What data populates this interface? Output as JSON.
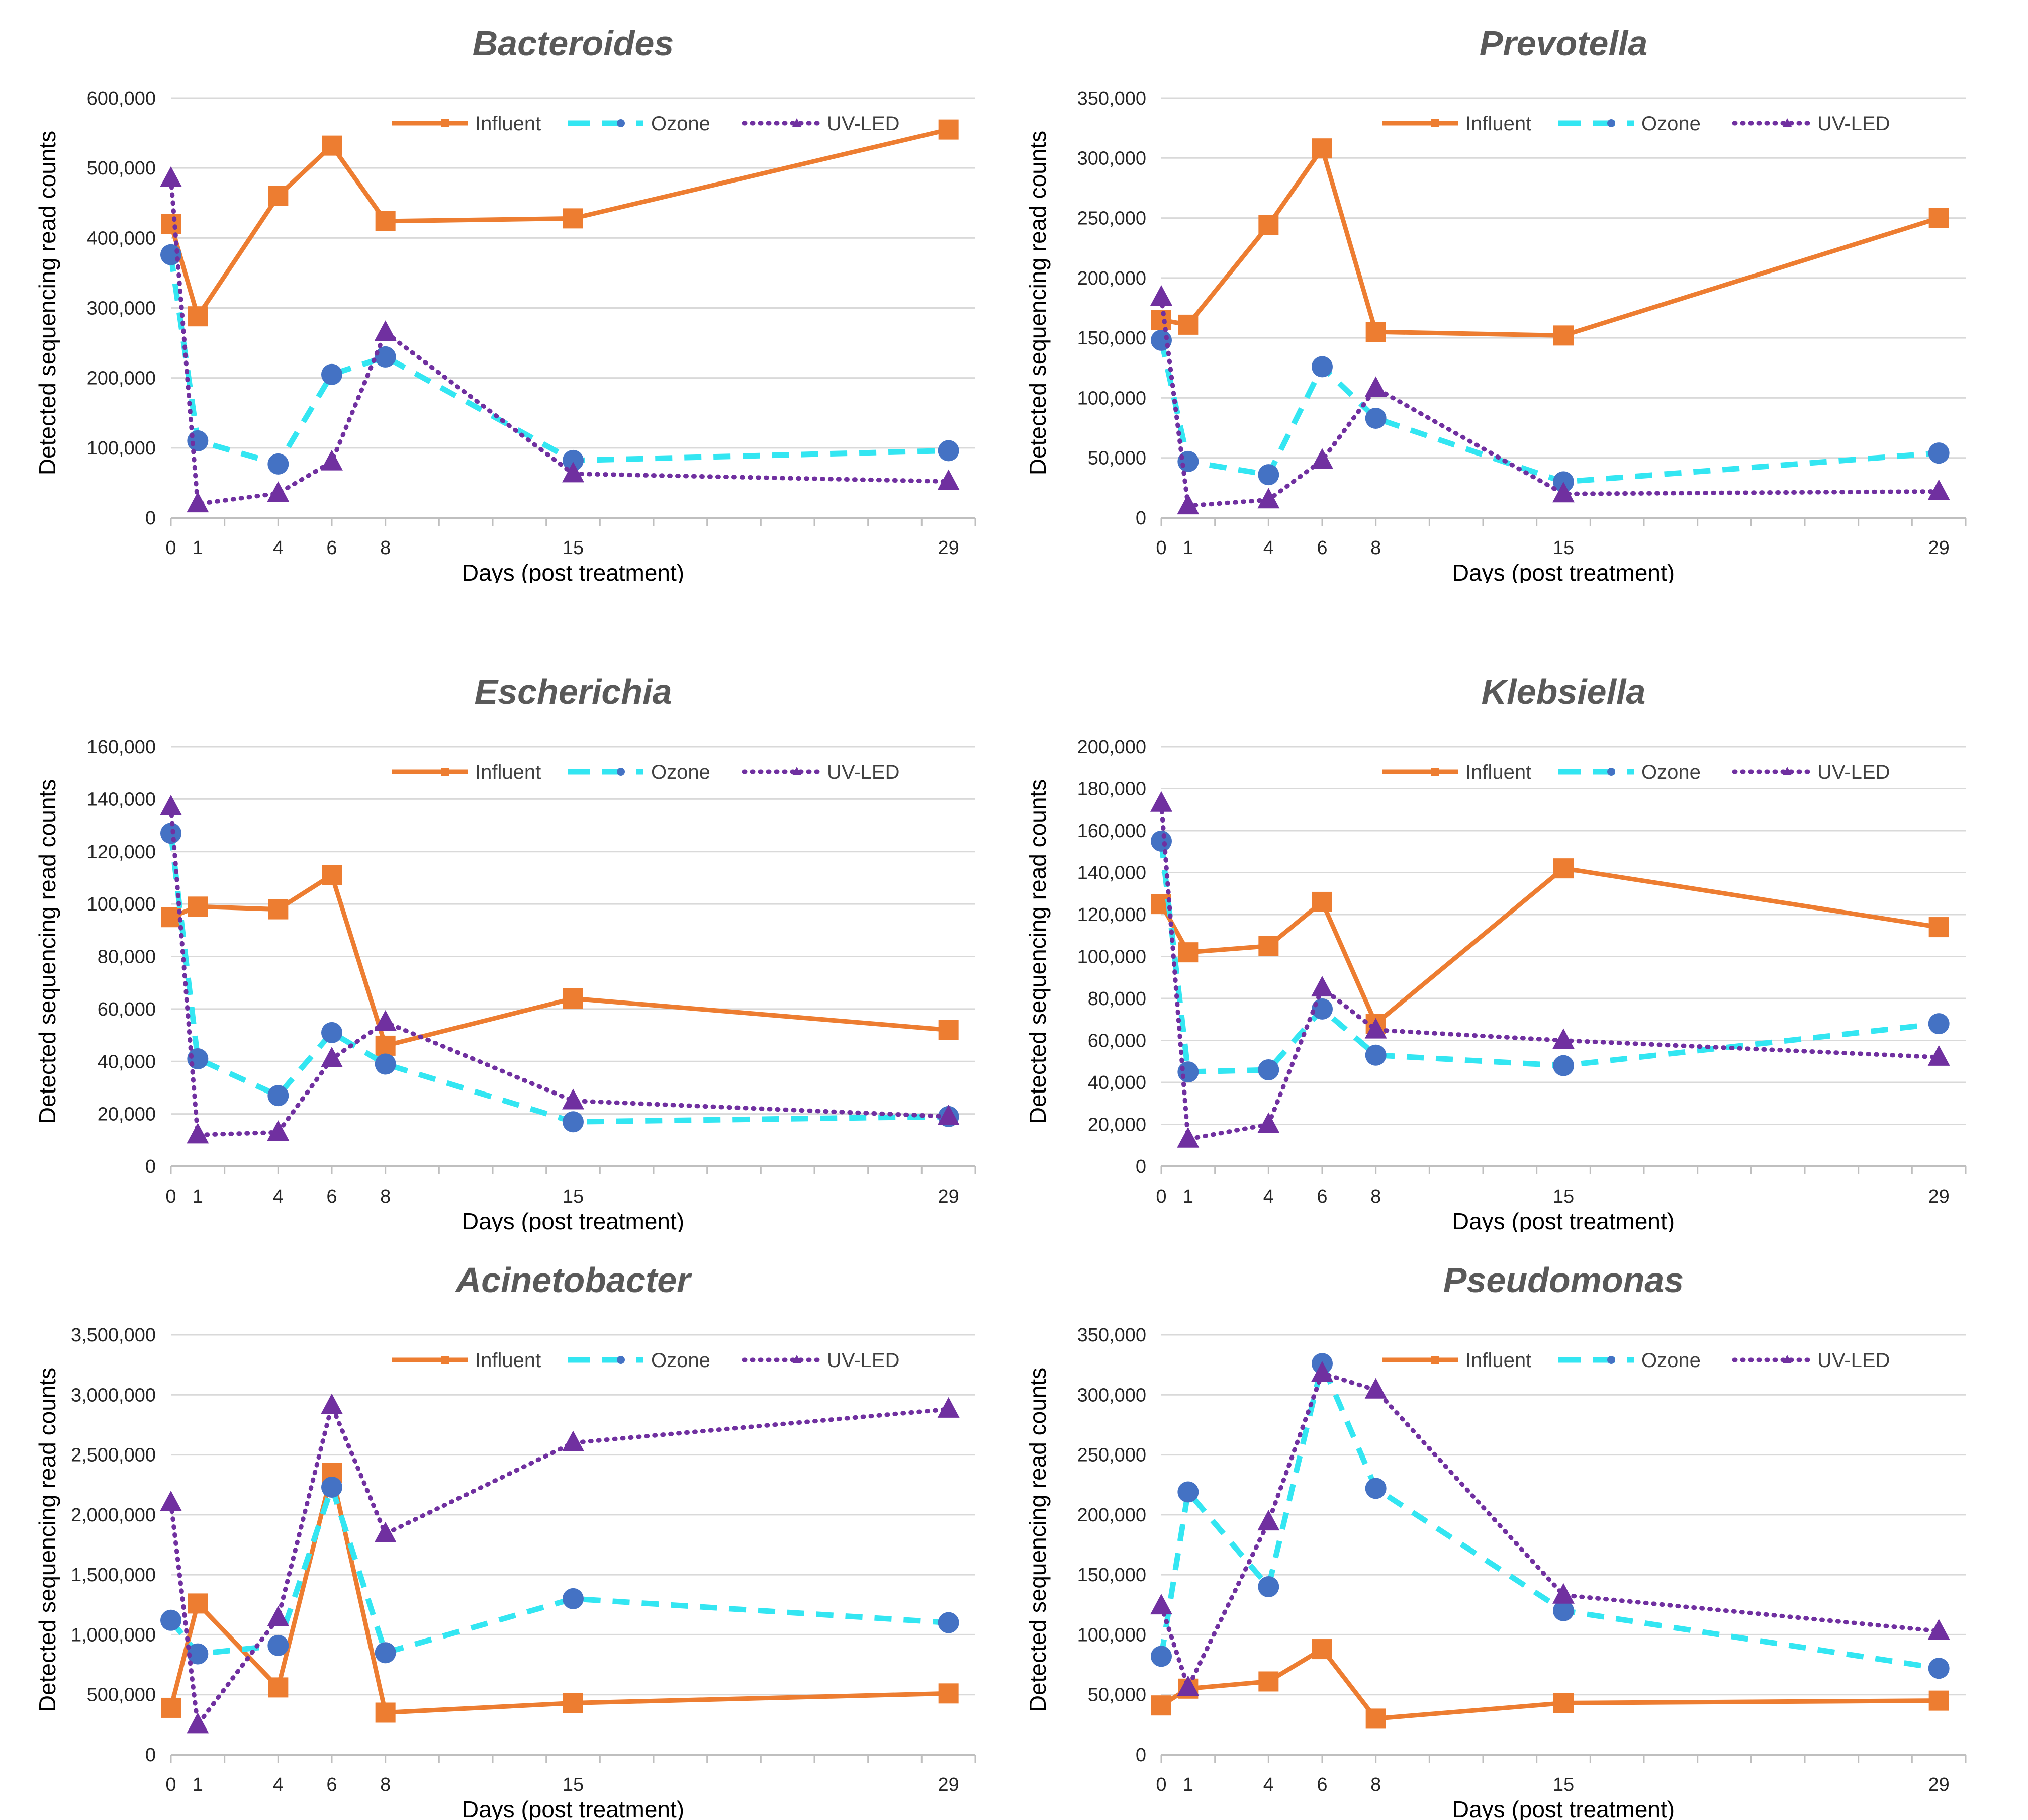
{
  "colors": {
    "influent": "#ED7D31",
    "ozone": "#33E6F2",
    "uvled": "#7030A0",
    "ozone_marker": "#4472C4",
    "grid": "#D9D9D9",
    "axis": "#BFBFBF"
  },
  "chart_data": [
    {
      "type": "line",
      "title": "Bacteroides",
      "xlabel": "Days (post treatment)",
      "ylabel": "Detected sequencing read counts",
      "ylim": [
        0,
        600000
      ],
      "yticks": [
        0,
        100000,
        200000,
        300000,
        400000,
        500000,
        600000
      ],
      "ytick_labels": [
        "0",
        "100,000",
        "200,000",
        "300,000",
        "400,000",
        "500,000",
        "600,000"
      ],
      "xlim": [
        0,
        30
      ],
      "xticks": [
        0,
        1,
        4,
        6,
        8,
        15,
        29
      ],
      "xtick_labels": [
        "0",
        "1",
        "4",
        "6",
        "8",
        "15",
        "29"
      ],
      "x": [
        0,
        1,
        4,
        6,
        8,
        15,
        29
      ],
      "series": [
        {
          "name": "Influent",
          "values": [
            420000,
            288000,
            460000,
            532000,
            424000,
            428000,
            555000
          ]
        },
        {
          "name": "Ozone",
          "values": [
            376000,
            110000,
            77000,
            205000,
            230000,
            82000,
            96000
          ]
        },
        {
          "name": "UV-LED",
          "values": [
            485000,
            20000,
            35000,
            80000,
            265000,
            63000,
            52000
          ]
        }
      ]
    },
    {
      "type": "line",
      "title": "Prevotella",
      "xlabel": "Days (post treatment)",
      "ylabel": "Detected sequencing read counts",
      "ylim": [
        0,
        350000
      ],
      "yticks": [
        0,
        50000,
        100000,
        150000,
        200000,
        250000,
        300000,
        350000
      ],
      "ytick_labels": [
        "0",
        "50,000",
        "100,000",
        "150,000",
        "200,000",
        "250,000",
        "300,000",
        "350,000"
      ],
      "xlim": [
        0,
        30
      ],
      "xticks": [
        0,
        1,
        4,
        6,
        8,
        15,
        29
      ],
      "xtick_labels": [
        "0",
        "1",
        "4",
        "6",
        "8",
        "15",
        "29"
      ],
      "x": [
        0,
        1,
        4,
        6,
        8,
        15,
        29
      ],
      "series": [
        {
          "name": "Influent",
          "values": [
            165000,
            161000,
            244000,
            308000,
            155000,
            152000,
            250000
          ]
        },
        {
          "name": "Ozone",
          "values": [
            148000,
            47000,
            36000,
            126000,
            83000,
            30000,
            54000
          ]
        },
        {
          "name": "UV-LED",
          "values": [
            184000,
            10000,
            15000,
            48000,
            108000,
            20000,
            22000
          ]
        }
      ]
    },
    {
      "type": "line",
      "title": "Escherichia",
      "xlabel": "Days (post treatment)",
      "ylabel": "Detected sequencing read counts",
      "ylim": [
        0,
        160000
      ],
      "yticks": [
        0,
        20000,
        40000,
        60000,
        80000,
        100000,
        120000,
        140000,
        160000
      ],
      "ytick_labels": [
        "0",
        "20,000",
        "40,000",
        "60,000",
        "80,000",
        "100,000",
        "120,000",
        "140,000",
        "160,000"
      ],
      "xlim": [
        0,
        30
      ],
      "xticks": [
        0,
        1,
        4,
        6,
        8,
        15,
        29
      ],
      "xtick_labels": [
        "0",
        "1",
        "4",
        "6",
        "8",
        "15",
        "29"
      ],
      "x": [
        0,
        1,
        4,
        6,
        8,
        15,
        29
      ],
      "series": [
        {
          "name": "Influent",
          "values": [
            95000,
            99000,
            98000,
            111000,
            46000,
            64000,
            52000
          ]
        },
        {
          "name": "Ozone",
          "values": [
            127000,
            41000,
            27000,
            51000,
            39000,
            17000,
            19000
          ]
        },
        {
          "name": "UV-LED",
          "values": [
            137000,
            12000,
            13000,
            41000,
            55000,
            25000,
            19000
          ]
        }
      ]
    },
    {
      "type": "line",
      "title": "Klebsiella",
      "xlabel": "Days (post treatment)",
      "ylabel": "Detected sequencing read counts",
      "ylim": [
        0,
        200000
      ],
      "yticks": [
        0,
        20000,
        40000,
        60000,
        80000,
        100000,
        120000,
        140000,
        160000,
        180000,
        200000
      ],
      "ytick_labels": [
        "0",
        "20,000",
        "40,000",
        "60,000",
        "80,000",
        "100,000",
        "120,000",
        "140,000",
        "160,000",
        "180,000",
        "200,000"
      ],
      "xlim": [
        0,
        30
      ],
      "xticks": [
        0,
        1,
        4,
        6,
        8,
        15,
        29
      ],
      "xtick_labels": [
        "0",
        "1",
        "4",
        "6",
        "8",
        "15",
        "29"
      ],
      "x": [
        0,
        1,
        4,
        6,
        8,
        15,
        29
      ],
      "series": [
        {
          "name": "Influent",
          "values": [
            125000,
            102000,
            105000,
            126000,
            68000,
            142000,
            114000
          ]
        },
        {
          "name": "Ozone",
          "values": [
            155000,
            45000,
            46000,
            75000,
            53000,
            48000,
            68000
          ]
        },
        {
          "name": "UV-LED",
          "values": [
            173000,
            13000,
            20000,
            85000,
            65000,
            60000,
            52000
          ]
        }
      ]
    },
    {
      "type": "line",
      "title": "Acinetobacter",
      "xlabel": "Days (post treatment)",
      "ylabel": "Detected sequencing read counts",
      "ylim": [
        0,
        3500000
      ],
      "yticks": [
        0,
        500000,
        1000000,
        1500000,
        2000000,
        2500000,
        3000000,
        3500000
      ],
      "ytick_labels": [
        "0",
        "500,000",
        "1,000,000",
        "1,500,000",
        "2,000,000",
        "2,500,000",
        "3,000,000",
        "3,500,000"
      ],
      "xlim": [
        0,
        30
      ],
      "xticks": [
        0,
        1,
        4,
        6,
        8,
        15,
        29
      ],
      "xtick_labels": [
        "0",
        "1",
        "4",
        "6",
        "8",
        "15",
        "29"
      ],
      "x": [
        0,
        1,
        4,
        6,
        8,
        15,
        29
      ],
      "series": [
        {
          "name": "Influent",
          "values": [
            390000,
            1260000,
            560000,
            2350000,
            350000,
            430000,
            510000
          ]
        },
        {
          "name": "Ozone",
          "values": [
            1120000,
            840000,
            910000,
            2230000,
            850000,
            1300000,
            1100000
          ]
        },
        {
          "name": "UV-LED",
          "values": [
            2100000,
            250000,
            1140000,
            2910000,
            1840000,
            2600000,
            2880000
          ]
        }
      ]
    },
    {
      "type": "line",
      "title": "Pseudomonas",
      "xlabel": "Days (post treatment)",
      "ylabel": "Detected sequencing read counts",
      "ylim": [
        0,
        350000
      ],
      "yticks": [
        0,
        50000,
        100000,
        150000,
        200000,
        250000,
        300000,
        350000
      ],
      "ytick_labels": [
        "0",
        "50,000",
        "100,000",
        "150,000",
        "200,000",
        "250,000",
        "300,000",
        "350,000"
      ],
      "xlim": [
        0,
        30
      ],
      "xticks": [
        0,
        1,
        4,
        6,
        8,
        15,
        29
      ],
      "xtick_labels": [
        "0",
        "1",
        "4",
        "6",
        "8",
        "15",
        "29"
      ],
      "x": [
        0,
        1,
        4,
        6,
        8,
        15,
        29
      ],
      "series": [
        {
          "name": "Influent",
          "values": [
            41000,
            55000,
            61000,
            88000,
            30000,
            43000,
            45000
          ]
        },
        {
          "name": "Ozone",
          "values": [
            82000,
            219000,
            140000,
            326000,
            222000,
            120000,
            72000
          ]
        },
        {
          "name": "UV-LED",
          "values": [
            124000,
            56000,
            194000,
            318000,
            304000,
            133000,
            103000
          ]
        }
      ]
    }
  ]
}
